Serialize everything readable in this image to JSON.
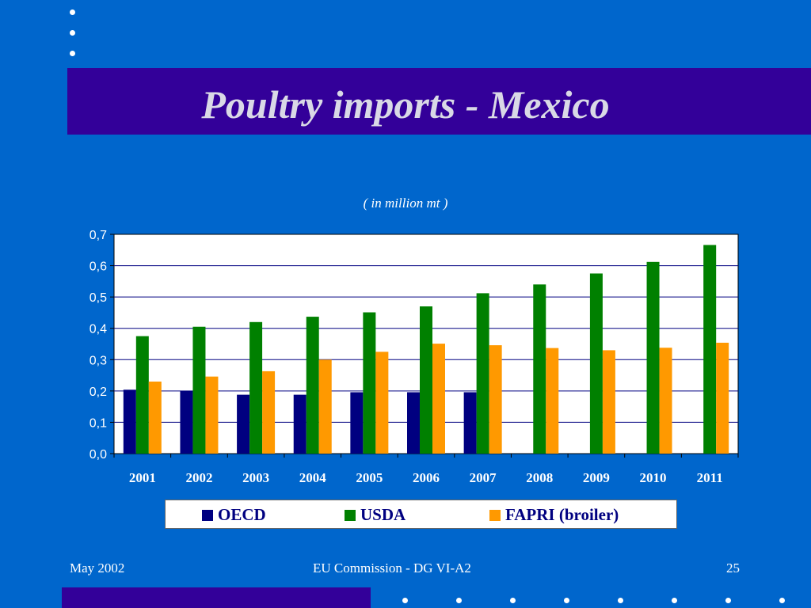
{
  "slide": {
    "title": "Poultry imports - Mexico",
    "footer_left": "May 2002",
    "footer_center": "EU Commission - DG VI-A2",
    "page_number": "25"
  },
  "colors": {
    "background": "#0066cc",
    "title_band": "#330099",
    "oecd": "#000080",
    "usda": "#008000",
    "fapri": "#ff9900"
  },
  "chart_data": {
    "type": "bar",
    "subtitle": "( in million mt )",
    "categories": [
      "2001",
      "2002",
      "2003",
      "2004",
      "2005",
      "2006",
      "2007",
      "2008",
      "2009",
      "2010",
      "2011"
    ],
    "series": [
      {
        "name": "OECD",
        "values": [
          0.204,
          0.2,
          0.188,
          0.188,
          0.196,
          0.196,
          0.196,
          null,
          null,
          null,
          null
        ]
      },
      {
        "name": "USDA",
        "values": [
          0.375,
          0.405,
          0.42,
          0.437,
          0.451,
          0.47,
          0.512,
          0.54,
          0.575,
          0.612,
          0.666
        ]
      },
      {
        "name": "FAPRI (broiler)",
        "values": [
          0.23,
          0.246,
          0.263,
          0.3,
          0.325,
          0.351,
          0.346,
          0.337,
          0.33,
          0.338,
          0.354
        ]
      }
    ],
    "yticks": [
      "0,0",
      "0,1",
      "0,2",
      "0,3",
      "0,4",
      "0,5",
      "0,6",
      "0,7"
    ],
    "ylim": [
      0,
      0.7
    ],
    "grid": true,
    "legend_position": "bottom"
  }
}
